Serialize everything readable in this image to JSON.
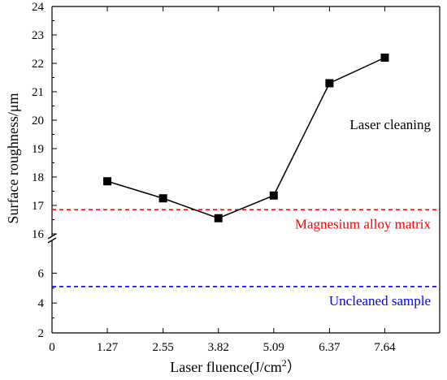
{
  "chart_data": {
    "type": "line",
    "xlabel_main": "Laser fluence(J/cm",
    "xlabel_sup": "2",
    "xlabel_end": "）",
    "ylabel": "Surface roughness/μm",
    "x_ticks": [
      "0",
      "1.27",
      "2.55",
      "3.82",
      "5.09",
      "6.37",
      "7.64"
    ],
    "y_ticks_upper": [
      "16",
      "17",
      "18",
      "19",
      "20",
      "21",
      "22",
      "23",
      "24"
    ],
    "y_ticks_lower": [
      "2",
      "4",
      "6"
    ],
    "ylim_upper": [
      16,
      24
    ],
    "ylim_lower": [
      2,
      7
    ],
    "xlim": [
      0,
      8.9
    ],
    "grid": false,
    "series": [
      {
        "name": "Laser cleaning",
        "color": "#000000",
        "x": [
          1.27,
          2.55,
          3.82,
          5.09,
          6.37,
          7.64
        ],
        "values": [
          17.85,
          17.25,
          16.55,
          17.35,
          21.3,
          22.2
        ]
      }
    ],
    "reference_lines": [
      {
        "name": "Magnesium alloy matrix",
        "value": 16.85,
        "axis": "upper",
        "color": "#ff0000"
      },
      {
        "name": "Uncleaned sample",
        "value": 5.1,
        "axis": "lower",
        "color": "#0000ff"
      }
    ]
  }
}
